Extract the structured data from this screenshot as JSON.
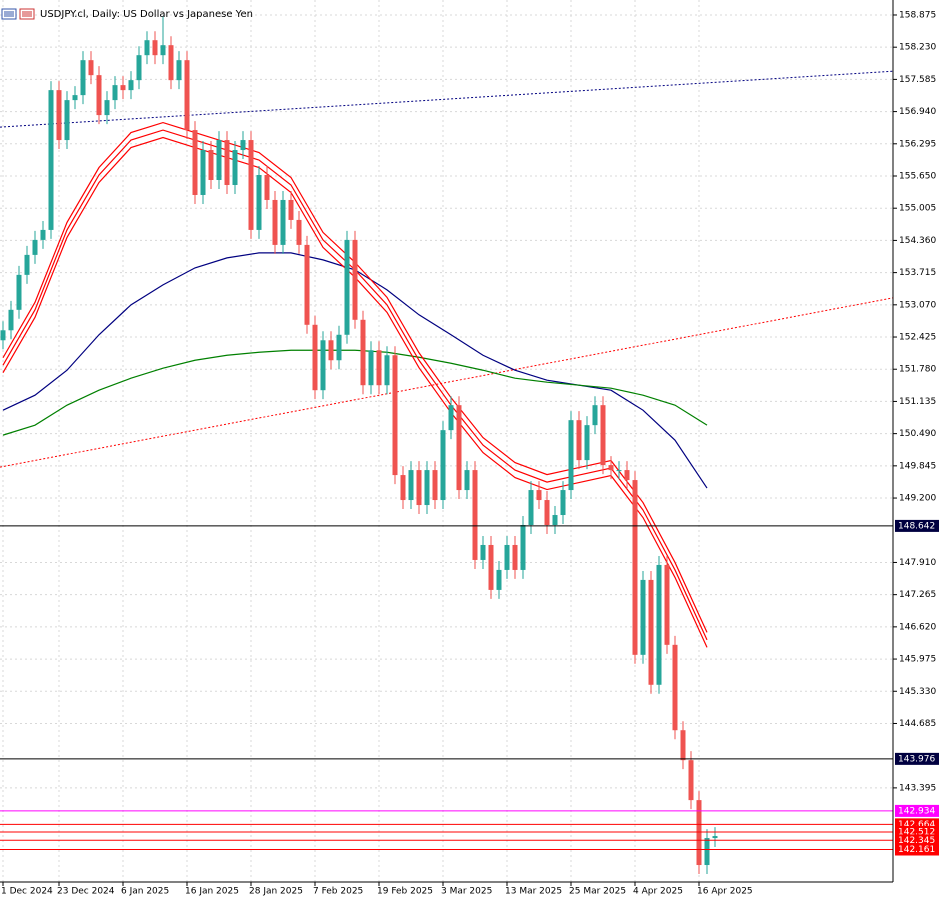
{
  "chart_data": {
    "type": "candlestick",
    "title": "USDJPY.cl, Daily:  US Dollar vs Japanese Yen",
    "categories": [
      "1 Dec 2024",
      null,
      null,
      null,
      null,
      null,
      null,
      "23 Dec 2024",
      null,
      null,
      null,
      null,
      null,
      null,
      null,
      "6 Jan 2025",
      null,
      null,
      null,
      null,
      null,
      null,
      null,
      "16 Jan 2025",
      null,
      null,
      null,
      null,
      null,
      null,
      null,
      "28 Jan 2025",
      null,
      null,
      null,
      null,
      null,
      null,
      null,
      "7 Feb 2025",
      null,
      null,
      null,
      null,
      null,
      null,
      null,
      "19 Feb 2025",
      null,
      null,
      null,
      null,
      null,
      null,
      null,
      "3 Mar 2025",
      null,
      null,
      null,
      null,
      null,
      null,
      null,
      "13 Mar 2025",
      null,
      null,
      null,
      null,
      null,
      null,
      null,
      "25 Mar 2025",
      null,
      null,
      null,
      null,
      null,
      null,
      null,
      "4 Apr 2025",
      null,
      null,
      null,
      null,
      null,
      null,
      null,
      "16 Apr 2025",
      null,
      null
    ],
    "open": [
      152.36,
      152.56,
      152.97,
      153.67,
      154.07,
      154.37,
      154.57,
      157.37,
      156.37,
      157.17,
      157.27,
      157.97,
      157.67,
      156.87,
      157.17,
      157.47,
      157.37,
      157.57,
      158.07,
      158.37,
      158.07,
      158.27,
      157.57,
      157.97,
      156.57,
      155.27,
      156.17,
      155.57,
      156.37,
      155.47,
      156.17,
      156.37,
      154.57,
      155.67,
      155.17,
      154.27,
      155.17,
      154.77,
      154.27,
      152.67,
      151.36,
      152.36,
      151.96,
      152.47,
      154.37,
      152.77,
      151.46,
      152.16,
      151.46,
      152.06,
      149.66,
      149.16,
      149.76,
      149.06,
      149.76,
      149.16,
      150.56,
      151.06,
      149.36,
      149.76,
      147.96,
      148.26,
      147.36,
      147.76,
      148.26,
      147.76,
      148.66,
      149.36,
      149.16,
      148.66,
      148.86,
      149.36,
      150.76,
      149.96,
      150.66,
      151.06,
      149.86,
      149.76,
      149.76,
      149.56,
      146.06,
      147.56,
      145.46,
      147.86,
      146.26,
      144.55,
      143.95,
      143.15,
      141.85,
      142.39
    ],
    "high": [
      152.74,
      153.15,
      153.85,
      154.25,
      154.55,
      154.75,
      157.55,
      157.55,
      157.35,
      157.45,
      158.15,
      158.15,
      157.85,
      157.35,
      157.65,
      157.65,
      157.75,
      158.25,
      158.55,
      158.55,
      158.85,
      158.45,
      158.15,
      158.15,
      156.75,
      156.35,
      156.35,
      156.55,
      156.55,
      156.35,
      156.55,
      156.55,
      155.85,
      155.85,
      155.35,
      155.35,
      155.35,
      154.95,
      154.45,
      152.85,
      152.54,
      152.54,
      152.65,
      154.55,
      154.55,
      152.95,
      152.34,
      152.34,
      152.24,
      152.24,
      149.84,
      149.94,
      149.94,
      149.94,
      149.94,
      150.74,
      151.24,
      151.24,
      149.94,
      149.94,
      148.44,
      148.44,
      147.94,
      148.44,
      148.44,
      148.84,
      149.54,
      149.54,
      149.34,
      149.04,
      149.54,
      150.94,
      150.94,
      150.84,
      151.24,
      151.24,
      150.04,
      149.94,
      149.94,
      149.74,
      147.74,
      147.74,
      148.04,
      148.04,
      146.44,
      144.73,
      144.13,
      143.33,
      142.57,
      142.61
    ],
    "low": [
      152.18,
      152.38,
      152.79,
      153.49,
      153.89,
      154.19,
      154.39,
      156.19,
      156.19,
      156.99,
      157.09,
      157.49,
      156.69,
      156.69,
      156.99,
      157.19,
      157.19,
      157.39,
      157.89,
      157.89,
      157.89,
      157.39,
      157.39,
      156.39,
      155.09,
      155.09,
      155.39,
      155.39,
      155.29,
      155.29,
      155.99,
      154.39,
      154.39,
      154.99,
      154.09,
      154.09,
      154.59,
      154.09,
      152.49,
      151.18,
      151.18,
      151.78,
      151.78,
      152.29,
      152.59,
      151.28,
      151.28,
      151.28,
      151.28,
      149.48,
      148.98,
      148.98,
      148.88,
      148.88,
      148.98,
      148.98,
      150.38,
      149.18,
      149.18,
      147.78,
      147.78,
      147.18,
      147.18,
      147.58,
      147.58,
      147.58,
      148.48,
      148.98,
      148.48,
      148.48,
      148.68,
      149.18,
      149.78,
      149.78,
      150.48,
      149.68,
      149.58,
      149.58,
      149.38,
      145.88,
      145.88,
      145.28,
      145.28,
      146.08,
      144.37,
      143.77,
      142.97,
      141.67,
      141.67,
      142.21
    ],
    "close": [
      152.56,
      152.97,
      153.67,
      154.07,
      154.37,
      154.57,
      157.37,
      156.37,
      157.17,
      157.27,
      157.97,
      157.67,
      156.87,
      157.17,
      157.47,
      157.37,
      157.57,
      158.07,
      158.37,
      158.07,
      158.27,
      157.57,
      157.97,
      156.57,
      155.27,
      156.17,
      155.57,
      156.37,
      155.47,
      156.17,
      156.37,
      154.57,
      155.67,
      155.17,
      154.27,
      155.17,
      154.77,
      154.27,
      152.67,
      151.36,
      152.36,
      151.96,
      152.47,
      154.37,
      152.77,
      151.46,
      152.16,
      151.46,
      152.06,
      149.66,
      149.16,
      149.76,
      149.06,
      149.76,
      149.16,
      150.56,
      151.06,
      149.36,
      149.76,
      147.96,
      148.26,
      147.36,
      147.76,
      148.26,
      147.76,
      148.66,
      149.36,
      149.16,
      148.66,
      148.86,
      149.36,
      150.76,
      149.96,
      150.66,
      151.06,
      149.86,
      149.76,
      149.76,
      149.56,
      146.06,
      147.56,
      145.46,
      147.86,
      146.26,
      144.55,
      143.95,
      143.15,
      141.85,
      142.39,
      142.43
    ],
    "up_color": "#26a69a",
    "down_color": "#ef5350",
    "ylim": [
      141.55,
      159.115
    ],
    "yticks": [
      158.875,
      {
        "value": 158.23,
        "label": "158.230"
      },
      157.585,
      {
        "value": 156.94,
        "label": "156.940"
      },
      156.295,
      {
        "value": 155.65,
        "label": "155.650"
      },
      155.005,
      {
        "value": 154.36,
        "label": "154.360"
      },
      153.715,
      {
        "value": 153.07,
        "label": "153.070"
      },
      152.425,
      {
        "value": 151.78,
        "label": "151.780"
      },
      151.135,
      {
        "value": 150.49,
        "label": "150.490"
      },
      149.845,
      {
        "value": 149.2,
        "label": "149.200"
      },
      {
        "value": 147.91,
        "label": "147.910"
      },
      147.265,
      {
        "value": 146.62,
        "label": "146.620"
      },
      145.975,
      {
        "value": 145.33,
        "label": "145.330"
      },
      144.685,
      143.395
    ],
    "grid": true,
    "overlays": [
      {
        "color": "#000080",
        "x": [
          0,
          4,
          8,
          12,
          16,
          20,
          24,
          28,
          32,
          36,
          40,
          44,
          48,
          52,
          56,
          60,
          64,
          68,
          72,
          76,
          80,
          84,
          88
        ],
        "values": [
          150.96,
          151.26,
          151.76,
          152.47,
          153.07,
          153.47,
          153.81,
          154.01,
          154.11,
          154.11,
          153.97,
          153.77,
          153.37,
          152.87,
          152.47,
          152.06,
          151.76,
          151.56,
          151.46,
          151.36,
          150.96,
          150.36,
          149.4
        ]
      },
      {
        "color": "#008000",
        "x": [
          0,
          4,
          8,
          12,
          16,
          20,
          24,
          28,
          32,
          36,
          40,
          44,
          48,
          52,
          56,
          60,
          64,
          68,
          72,
          76,
          80,
          84,
          88
        ],
        "values": [
          150.46,
          150.66,
          151.06,
          151.36,
          151.6,
          151.8,
          151.96,
          152.06,
          152.12,
          152.16,
          152.16,
          152.16,
          152.12,
          152.02,
          151.9,
          151.76,
          151.6,
          151.52,
          151.46,
          151.4,
          151.26,
          151.06,
          150.66
        ]
      },
      {
        "color": "#ff0000",
        "x": [
          0,
          4,
          8,
          12,
          16,
          20,
          24,
          28,
          32,
          36,
          40,
          44,
          48,
          52,
          56,
          60,
          64,
          68,
          72,
          76,
          80,
          84,
          88
        ],
        "values": [
          152.01,
          153.12,
          154.72,
          155.82,
          156.52,
          156.72,
          156.52,
          156.32,
          156.12,
          155.62,
          154.52,
          153.92,
          153.22,
          152.11,
          151.21,
          150.41,
          149.91,
          149.67,
          149.81,
          149.95,
          149.11,
          147.91,
          146.51
        ]
      },
      {
        "color": "#ff0000",
        "x": [
          0,
          4,
          8,
          12,
          16,
          20,
          24,
          28,
          32,
          36,
          40,
          44,
          48,
          52,
          56,
          60,
          64,
          68,
          72,
          76,
          80,
          84,
          88
        ],
        "values": [
          151.86,
          152.97,
          154.57,
          155.67,
          156.37,
          156.57,
          156.37,
          156.17,
          155.97,
          155.47,
          154.37,
          153.77,
          153.07,
          151.96,
          151.06,
          150.26,
          149.76,
          149.52,
          149.66,
          149.8,
          148.96,
          147.76,
          146.36
        ]
      },
      {
        "color": "#ff0000",
        "x": [
          0,
          4,
          8,
          12,
          16,
          20,
          24,
          28,
          32,
          36,
          40,
          44,
          48,
          52,
          56,
          60,
          64,
          68,
          72,
          76,
          80,
          84,
          88
        ],
        "values": [
          151.71,
          152.82,
          154.42,
          155.52,
          156.22,
          156.42,
          156.22,
          156.02,
          155.82,
          155.32,
          154.22,
          153.62,
          152.92,
          151.81,
          150.91,
          150.11,
          149.61,
          149.37,
          149.51,
          149.65,
          148.81,
          147.61,
          146.21
        ]
      }
    ],
    "trendlines": [
      {
        "color": "#000080",
        "values": [
          156.63,
          157.75
        ]
      },
      {
        "color": "#ff0000",
        "values": [
          149.82,
          153.21
        ]
      }
    ],
    "levels": [
      {
        "value": 148.642,
        "color": "#000040"
      },
      {
        "value": 143.976,
        "color": "#000040"
      },
      {
        "value": 142.934,
        "color": "#ff00ff"
      },
      {
        "value": 142.664,
        "color": "#ff0000"
      },
      {
        "value": 142.512,
        "color": "#ff0000"
      },
      {
        "value": 142.345,
        "color": "#ff0000"
      },
      {
        "value": 142.161,
        "color": "#ff0000"
      }
    ]
  }
}
